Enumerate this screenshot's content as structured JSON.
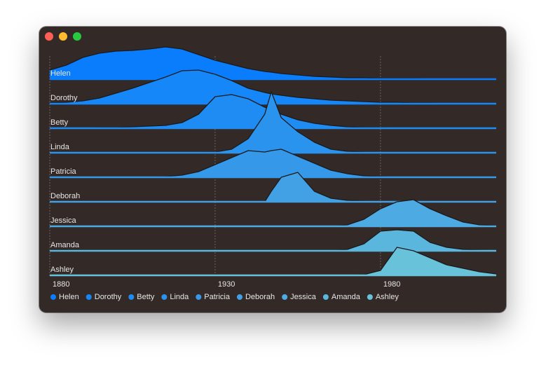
{
  "chart_data": {
    "type": "ridgeline",
    "x": [
      1880,
      1885,
      1890,
      1895,
      1900,
      1905,
      1910,
      1915,
      1920,
      1925,
      1930,
      1935,
      1940,
      1945,
      1947,
      1950,
      1955,
      1960,
      1965,
      1970,
      1975,
      1980,
      1985,
      1990,
      1995,
      2000,
      2005,
      2010,
      2015
    ],
    "xlim": [
      1880,
      2015
    ],
    "xticks": [
      1880,
      1930,
      1980
    ],
    "grid": true,
    "series": [
      {
        "name": "Helen",
        "color": "#0a7dfc",
        "values": [
          13,
          20,
          31,
          37,
          40,
          41,
          43,
          46,
          43,
          35,
          27,
          21,
          15,
          11,
          10,
          8,
          6,
          4,
          3,
          2,
          2,
          1,
          1,
          1,
          0,
          0,
          0,
          0,
          0
        ]
      },
      {
        "name": "Dorothy",
        "color": "#1587f8",
        "values": [
          1,
          2,
          4,
          8,
          15,
          22,
          30,
          38,
          47,
          48,
          42,
          33,
          22,
          16,
          14,
          12,
          9,
          7,
          5,
          4,
          3,
          2,
          2,
          1,
          1,
          0,
          0,
          0,
          0
        ]
      },
      {
        "name": "Betty",
        "color": "#1e8cf2",
        "values": [
          0,
          0,
          0,
          1,
          1,
          2,
          3,
          4,
          8,
          20,
          45,
          48,
          42,
          30,
          26,
          20,
          12,
          7,
          4,
          2,
          1,
          1,
          0,
          0,
          0,
          0,
          0,
          0,
          0
        ]
      },
      {
        "name": "Linda",
        "color": "#2a93ee",
        "values": [
          0,
          0,
          0,
          0,
          0,
          0,
          0,
          0,
          0,
          0,
          1,
          5,
          20,
          55,
          87,
          50,
          30,
          15,
          5,
          2,
          1,
          0,
          0,
          0,
          0,
          0,
          0,
          0,
          0
        ]
      },
      {
        "name": "Patricia",
        "color": "#3598e8",
        "values": [
          0,
          0,
          0,
          0,
          0,
          0,
          0,
          1,
          3,
          8,
          18,
          28,
          38,
          36,
          38,
          40,
          30,
          20,
          10,
          5,
          2,
          1,
          0,
          0,
          0,
          0,
          0,
          0,
          0
        ]
      },
      {
        "name": "Deborah",
        "color": "#42a0e4",
        "values": [
          0,
          0,
          0,
          0,
          0,
          0,
          0,
          0,
          0,
          0,
          0,
          0,
          0,
          0,
          15,
          35,
          42,
          15,
          5,
          2,
          1,
          0,
          0,
          0,
          0,
          0,
          0,
          0,
          0
        ]
      },
      {
        "name": "Jessica",
        "color": "#4eaae2",
        "values": [
          0,
          0,
          0,
          0,
          0,
          0,
          0,
          0,
          0,
          0,
          0,
          0,
          0,
          0,
          0,
          0,
          0,
          0,
          0,
          2,
          10,
          25,
          35,
          38,
          25,
          15,
          6,
          2,
          1
        ]
      },
      {
        "name": "Amanda",
        "color": "#5bb6dd",
        "values": [
          1,
          1,
          0,
          0,
          0,
          0,
          0,
          0,
          0,
          0,
          0,
          0,
          0,
          0,
          0,
          0,
          0,
          0,
          0,
          2,
          10,
          28,
          30,
          28,
          12,
          5,
          2,
          1,
          0
        ]
      },
      {
        "name": "Ashley",
        "color": "#68c2da",
        "values": [
          0,
          0,
          0,
          0,
          0,
          0,
          0,
          0,
          0,
          0,
          0,
          0,
          0,
          0,
          0,
          0,
          0,
          0,
          0,
          0,
          1,
          7,
          40,
          35,
          25,
          15,
          10,
          5,
          2
        ]
      }
    ]
  }
}
